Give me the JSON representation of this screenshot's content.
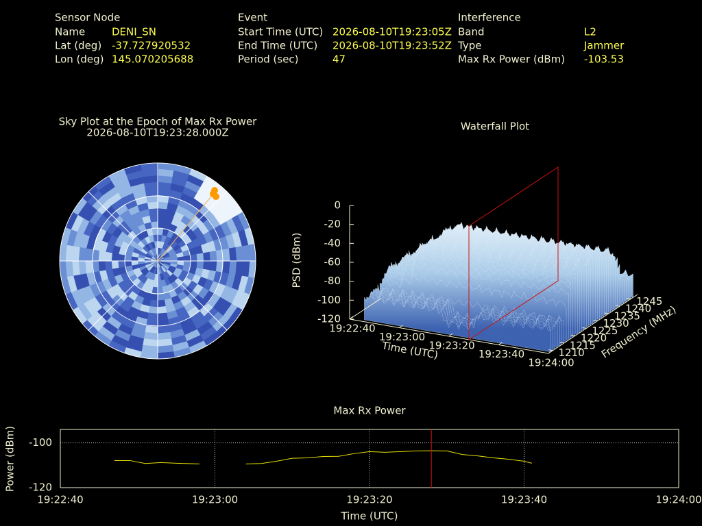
{
  "header": {
    "sensor": {
      "title": "Sensor Node",
      "rows": [
        [
          "Name",
          "DENI_SN"
        ],
        [
          "Lat (deg)",
          "-37.727920532"
        ],
        [
          "Lon (deg)",
          "145.070205688"
        ]
      ]
    },
    "event": {
      "title": "Event",
      "rows": [
        [
          "Start Time (UTC)",
          "2026-08-10T19:23:05Z"
        ],
        [
          "End Time (UTC)",
          "2026-08-10T19:23:52Z"
        ],
        [
          "Period (sec)",
          "47"
        ]
      ]
    },
    "interference": {
      "title": "Interference",
      "rows": [
        [
          "Band",
          "L2"
        ],
        [
          "Type",
          "Jammer"
        ],
        [
          "Max Rx Power (dBm)",
          "-103.53"
        ]
      ]
    }
  },
  "chart_data": [
    {
      "type": "polar",
      "title": "Sky Plot at the Epoch of Max Rx Power",
      "subtitle": "2026-08-10T19:23:28.000Z"
    },
    {
      "type": "surface3d",
      "title": "Waterfall Plot",
      "xlabel": "Time (UTC)",
      "ylabel": "Frequency (MHz)",
      "zlabel": "PSD (dBm)",
      "xlim": [
        "19:22:40",
        "19:24:00"
      ],
      "xticks": [
        "19:22:40",
        "19:23:00",
        "19:23:20",
        "19:23:40",
        "19:24:00"
      ],
      "ylim": [
        1208,
        1248
      ],
      "yticks": [
        1210,
        1215,
        1220,
        1225,
        1230,
        1235,
        1240,
        1245
      ],
      "zlim": [
        -120,
        0
      ],
      "zticks": [
        0,
        -20,
        -40,
        -60,
        -80,
        -100,
        -120
      ],
      "marker_x": "19:23:28",
      "marker_color": "#d01010"
    },
    {
      "type": "line",
      "title": "Max Rx Power",
      "xlabel": "Time (UTC)",
      "ylabel": "Power (dBm)",
      "color": "#e8e000",
      "x": [
        "19:22:47",
        "19:22:49",
        "19:22:51",
        "19:22:53",
        "19:22:55",
        "19:22:57",
        "19:22:58",
        "19:23:01",
        "19:23:04",
        "19:23:06",
        "19:23:08",
        "19:23:10",
        "19:23:12",
        "19:23:14",
        "19:23:16",
        "19:23:18",
        "19:23:20",
        "19:23:22",
        "19:23:24",
        "19:23:26",
        "19:23:28",
        "19:23:30",
        "19:23:32",
        "19:23:34",
        "19:23:36",
        "19:23:38",
        "19:23:40",
        "19:23:41"
      ],
      "values": [
        -107.9,
        -107.9,
        -109.2,
        -108.8,
        -109.1,
        -109.3,
        -109.4,
        null,
        -109.4,
        -109.2,
        -108.2,
        -106.9,
        -106.7,
        -106.1,
        -106.0,
        -104.8,
        -103.9,
        -104.2,
        -103.9,
        -103.6,
        -103.53,
        -103.6,
        -105.2,
        -105.8,
        -106.7,
        -107.3,
        -108.2,
        -109.1
      ],
      "xlim": [
        "19:22:40",
        "19:24:00"
      ],
      "xticks": [
        "19:22:40",
        "19:23:00",
        "19:23:20",
        "19:23:40",
        "19:24:00"
      ],
      "ylim": [
        -120,
        -94
      ],
      "yticks": [
        -120,
        -100
      ],
      "grid": true,
      "marker_x": "19:23:28",
      "marker_color": "#d01010"
    }
  ]
}
